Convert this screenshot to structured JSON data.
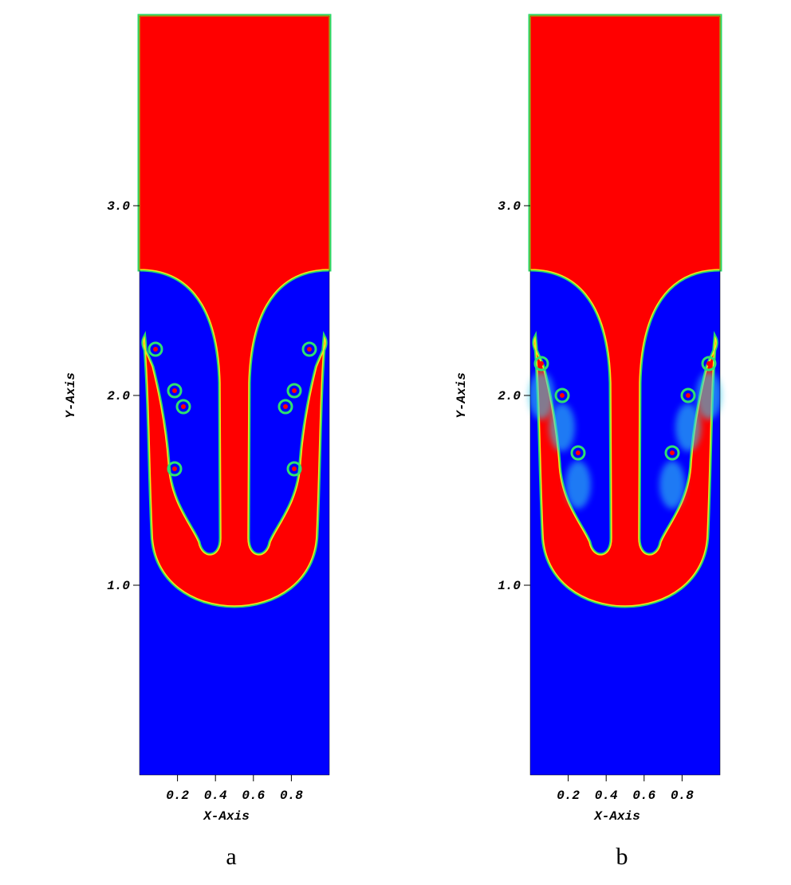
{
  "chart_data": [
    {
      "type": "contour",
      "caption": "a",
      "xlabel": "X-Axis",
      "ylabel": "Y-Axis",
      "xlim": [
        0,
        1
      ],
      "ylim": [
        0,
        4
      ],
      "xticks": [
        0.2,
        0.4,
        0.6,
        0.8
      ],
      "yticks": [
        {
          "value": 1,
          "label": "1.0"
        },
        {
          "value": 2,
          "label": "2.0"
        },
        {
          "value": 3,
          "label": "3.0"
        }
      ],
      "colors": [
        "#ff0000",
        "#0000ff"
      ]
    },
    {
      "type": "contour",
      "caption": "b",
      "xlabel": "X-Axis",
      "ylabel": "Y-Axis",
      "xlim": [
        0,
        1
      ],
      "ylim": [
        0,
        4
      ],
      "xticks": [
        0.2,
        0.4,
        0.6,
        0.8
      ],
      "yticks": [
        {
          "value": 1,
          "label": "1.0"
        },
        {
          "value": 2,
          "label": "2.0"
        },
        {
          "value": 3,
          "label": "3.0"
        }
      ],
      "colors": [
        "#ff0000",
        "#0000ff"
      ]
    }
  ]
}
